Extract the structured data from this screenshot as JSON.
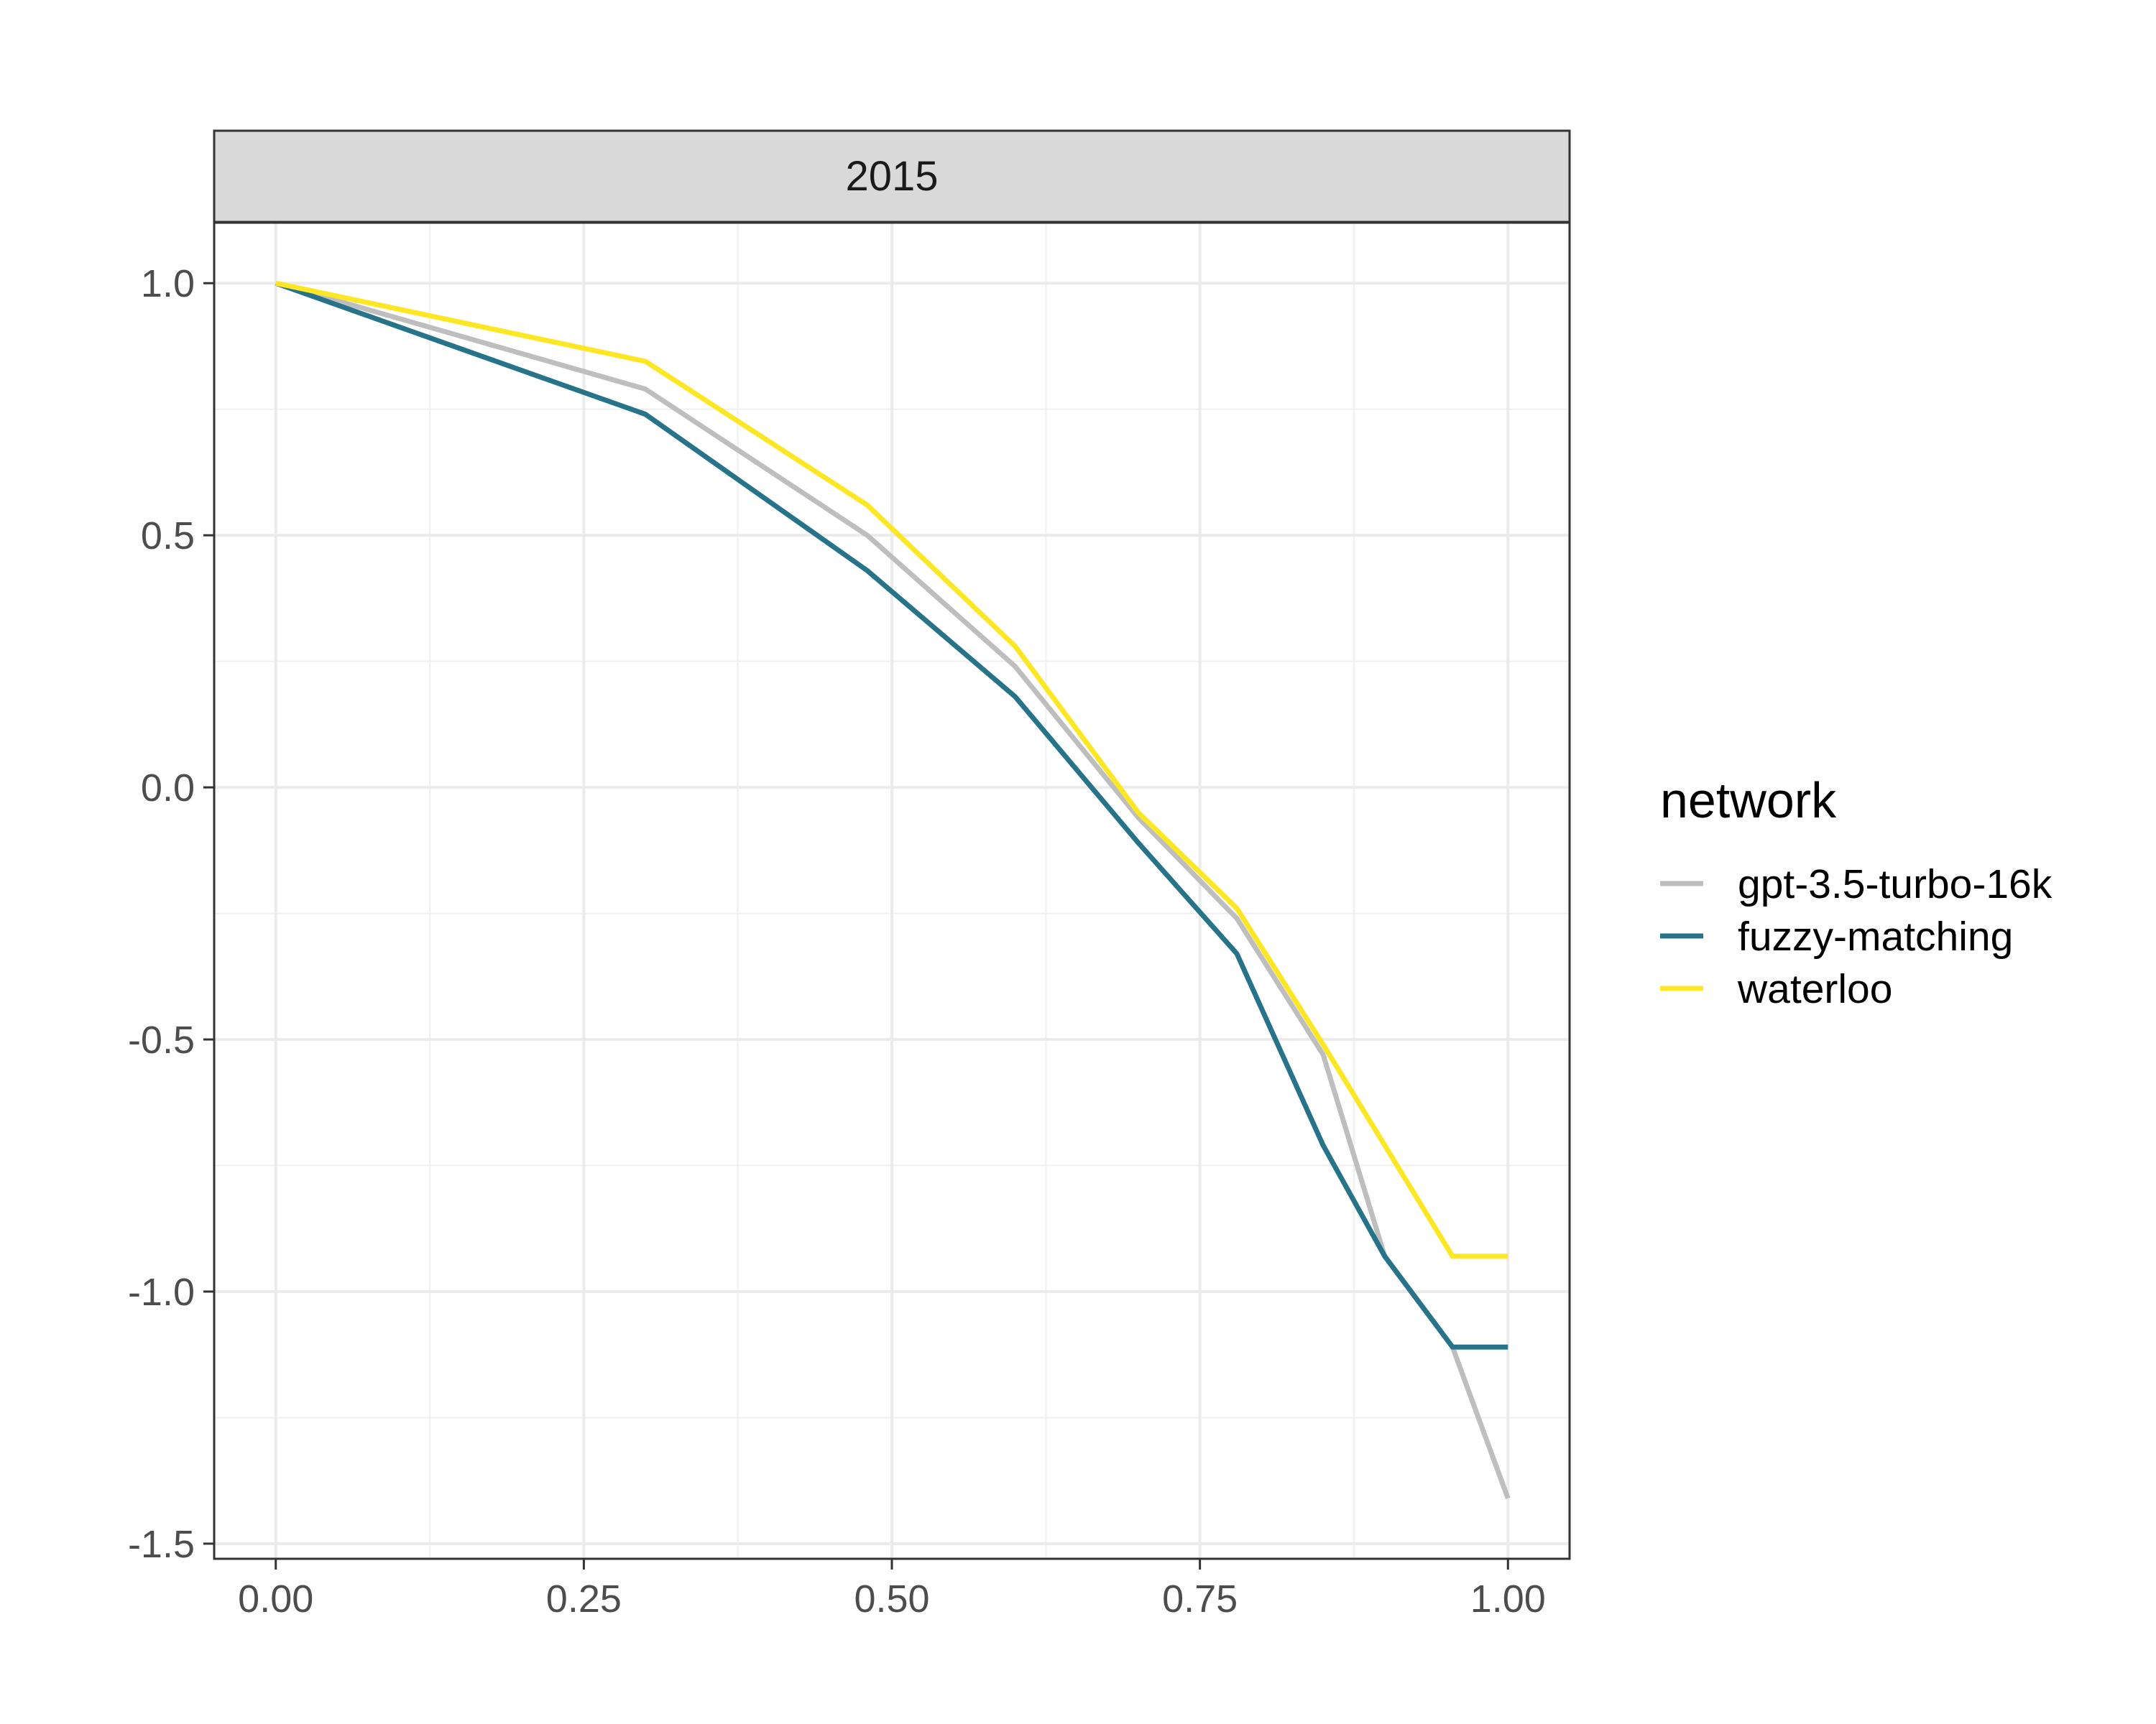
{
  "chart_data": {
    "type": "line",
    "facet_label": "2015",
    "xlabel": "",
    "ylabel": "",
    "xlim": [
      -0.05,
      1.05
    ],
    "ylim": [
      -1.53,
      1.12
    ],
    "x_ticks": [
      0,
      0.25,
      0.5,
      0.75,
      1
    ],
    "x_tick_labels": [
      "0.00",
      "0.25",
      "0.50",
      "0.75",
      "1.00"
    ],
    "x_minor_ticks": [
      0.125,
      0.375,
      0.625,
      0.875
    ],
    "y_ticks": [
      1,
      0.5,
      0,
      -0.5,
      -1,
      -1.5
    ],
    "y_tick_labels": [
      "1.0",
      "0.5",
      "0.0",
      "-0.5",
      "-1.0",
      "-1.5"
    ],
    "y_minor_ticks": [
      0.75,
      0.25,
      -0.25,
      -0.75,
      -1.25
    ],
    "grid": true,
    "legend": {
      "title": "network",
      "position": "right"
    },
    "series": [
      {
        "name": "gpt-3.5-turbo-16k",
        "color": "#bebebe",
        "points": [
          [
            0,
            1.0
          ],
          [
            0.3,
            0.79
          ],
          [
            0.48,
            0.5
          ],
          [
            0.6,
            0.24
          ],
          [
            0.7,
            -0.06
          ],
          [
            0.78,
            -0.26
          ],
          [
            0.85,
            -0.53
          ],
          [
            0.9,
            -0.93
          ],
          [
            0.955,
            -1.11
          ],
          [
            1.0,
            -1.41
          ]
        ]
      },
      {
        "name": "fuzzy-matching",
        "color": "#26738a",
        "points": [
          [
            0,
            1.0
          ],
          [
            0.3,
            0.74
          ],
          [
            0.48,
            0.43
          ],
          [
            0.6,
            0.18
          ],
          [
            0.7,
            -0.11
          ],
          [
            0.78,
            -0.33
          ],
          [
            0.85,
            -0.71
          ],
          [
            0.9,
            -0.93
          ],
          [
            0.955,
            -1.11
          ],
          [
            1.0,
            -1.11
          ]
        ]
      },
      {
        "name": "waterloo",
        "color": "#fde725",
        "points": [
          [
            0,
            1.0
          ],
          [
            0.3,
            0.845
          ],
          [
            0.48,
            0.56
          ],
          [
            0.6,
            0.28
          ],
          [
            0.7,
            -0.05
          ],
          [
            0.78,
            -0.24
          ],
          [
            0.85,
            -0.51
          ],
          [
            0.9,
            -0.71
          ],
          [
            0.955,
            -0.93
          ],
          [
            1.0,
            -0.93
          ]
        ]
      }
    ]
  }
}
